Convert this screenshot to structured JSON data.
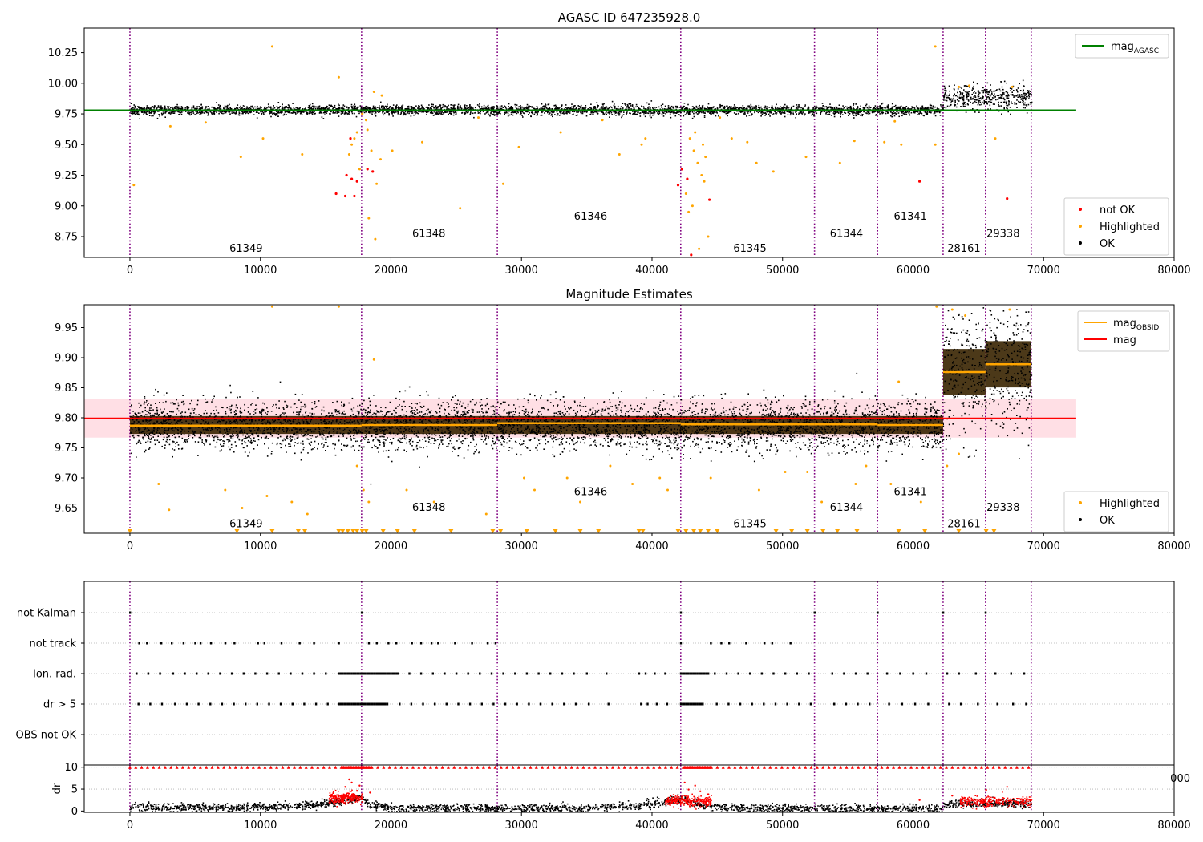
{
  "figure": {
    "title": "AGASC ID 647235928.0"
  },
  "chart_data": [
    {
      "type": "scatter",
      "title": "AGASC ID 647235928.0",
      "xlim": [
        -3500,
        80000
      ],
      "ylim": [
        8.58,
        10.45
      ],
      "xticks": [
        0,
        10000,
        20000,
        30000,
        40000,
        50000,
        60000,
        70000,
        80000
      ],
      "yticks": [
        8.75,
        9.0,
        9.25,
        9.5,
        9.75,
        10.0,
        10.25
      ],
      "ytick_labels": [
        "8.75",
        "9.00",
        "9.25",
        "9.50",
        "9.75",
        "10.00",
        "10.25"
      ],
      "vlines": [
        0,
        17750,
        28150,
        42200,
        52450,
        57280,
        62300,
        65550,
        69050
      ],
      "obsids": [
        {
          "label": "61349",
          "x": 8900,
          "y": 8.66
        },
        {
          "label": "61348",
          "x": 22900,
          "y": 8.78
        },
        {
          "label": "61346",
          "x": 35300,
          "y": 8.92
        },
        {
          "label": "61345",
          "x": 47500,
          "y": 8.66
        },
        {
          "label": "61344",
          "x": 54900,
          "y": 8.78
        },
        {
          "label": "61341",
          "x": 59800,
          "y": 8.92
        },
        {
          "label": "28161",
          "x": 63900,
          "y": 8.66
        },
        {
          "label": "29338",
          "x": 66900,
          "y": 8.78
        }
      ],
      "hline": {
        "name": "mag_AGASC",
        "y": 9.78,
        "x_end": 72500,
        "color": "#008000"
      },
      "ok_segments": [
        {
          "x0": 0,
          "x1": 62300,
          "y": 9.785,
          "spread": 0.02
        },
        {
          "x0": 62300,
          "x1": 65550,
          "y": 9.885,
          "spread": 0.05
        },
        {
          "x0": 65550,
          "x1": 69050,
          "y": 9.89,
          "spread": 0.05
        }
      ],
      "highlighted": [
        [
          16000,
          10.05
        ],
        [
          10900,
          10.3
        ],
        [
          61700,
          10.3
        ],
        [
          18700,
          9.93
        ],
        [
          19300,
          9.9
        ],
        [
          17800,
          9.75
        ],
        [
          17400,
          9.6
        ],
        [
          18200,
          9.62
        ],
        [
          17000,
          9.5
        ],
        [
          18500,
          9.45
        ],
        [
          19200,
          9.38
        ],
        [
          17600,
          9.3
        ],
        [
          16800,
          9.42
        ],
        [
          18900,
          9.18
        ],
        [
          17200,
          9.55
        ],
        [
          18100,
          9.7
        ],
        [
          20100,
          9.45
        ],
        [
          8500,
          9.4
        ],
        [
          13200,
          9.42
        ],
        [
          10200,
          9.55
        ],
        [
          22400,
          9.52
        ],
        [
          3100,
          9.65
        ],
        [
          5800,
          9.68
        ],
        [
          25300,
          8.98
        ],
        [
          29800,
          9.48
        ],
        [
          28600,
          9.18
        ],
        [
          18300,
          8.9
        ],
        [
          18800,
          8.73
        ],
        [
          42900,
          9.55
        ],
        [
          43200,
          9.45
        ],
        [
          43500,
          9.35
        ],
        [
          43800,
          9.25
        ],
        [
          44100,
          9.4
        ],
        [
          43300,
          9.6
        ],
        [
          43900,
          9.5
        ],
        [
          42600,
          9.1
        ],
        [
          42800,
          8.95
        ],
        [
          43100,
          9.0
        ],
        [
          44300,
          8.75
        ],
        [
          44000,
          9.2
        ],
        [
          43600,
          8.65
        ],
        [
          39500,
          9.55
        ],
        [
          39200,
          9.5
        ],
        [
          37500,
          9.42
        ],
        [
          46100,
          9.55
        ],
        [
          47300,
          9.52
        ],
        [
          48000,
          9.35
        ],
        [
          49300,
          9.28
        ],
        [
          51800,
          9.4
        ],
        [
          54400,
          9.35
        ],
        [
          55500,
          9.53
        ],
        [
          57800,
          9.52
        ],
        [
          59100,
          9.5
        ],
        [
          61700,
          9.5
        ],
        [
          66300,
          9.55
        ],
        [
          64300,
          9.98
        ],
        [
          63500,
          9.97
        ],
        [
          67600,
          9.97
        ],
        [
          58600,
          9.69
        ],
        [
          33000,
          9.6
        ],
        [
          36200,
          9.7
        ],
        [
          45200,
          9.72
        ],
        [
          26700,
          9.72
        ],
        [
          300,
          9.17
        ]
      ],
      "not_ok": [
        [
          15800,
          9.1
        ],
        [
          16500,
          9.08
        ],
        [
          17200,
          9.08
        ],
        [
          16600,
          9.25
        ],
        [
          17000,
          9.22
        ],
        [
          17400,
          9.2
        ],
        [
          18200,
          9.3
        ],
        [
          18600,
          9.28
        ],
        [
          16900,
          9.55
        ],
        [
          42000,
          9.17
        ],
        [
          42300,
          9.3
        ],
        [
          43000,
          8.6
        ],
        [
          42700,
          9.22
        ],
        [
          44400,
          9.05
        ],
        [
          60500,
          9.2
        ],
        [
          67200,
          9.06
        ]
      ],
      "legend": [
        "not OK",
        "Highlighted",
        "OK"
      ],
      "legend_title": "mag_AGASC",
      "legend_position": "bottom-right / top-right"
    },
    {
      "type": "scatter",
      "title": "Magnitude Estimates",
      "xlim": [
        -3500,
        80000
      ],
      "ylim": [
        9.608,
        9.988
      ],
      "xticks": [
        0,
        10000,
        20000,
        30000,
        40000,
        50000,
        60000,
        70000,
        80000
      ],
      "yticks": [
        9.65,
        9.7,
        9.75,
        9.8,
        9.85,
        9.9,
        9.95
      ],
      "ytick_labels": [
        "9.65",
        "9.70",
        "9.75",
        "9.80",
        "9.85",
        "9.90",
        "9.95"
      ],
      "vlines": [
        0,
        17750,
        28150,
        42200,
        52450,
        57280,
        62300,
        65550,
        69050
      ],
      "obsids": [
        {
          "label": "61349",
          "x": 8900,
          "y": 9.625
        },
        {
          "label": "61348",
          "x": 22900,
          "y": 9.652
        },
        {
          "label": "61346",
          "x": 35300,
          "y": 9.678
        },
        {
          "label": "61345",
          "x": 47500,
          "y": 9.625
        },
        {
          "label": "61344",
          "x": 54900,
          "y": 9.652
        },
        {
          "label": "61341",
          "x": 59800,
          "y": 9.678
        },
        {
          "label": "28161",
          "x": 63900,
          "y": 9.625
        },
        {
          "label": "29338",
          "x": 66900,
          "y": 9.652
        }
      ],
      "mag": {
        "name": "mag",
        "y": 9.799,
        "band": [
          9.767,
          9.831
        ],
        "x_end": 72500,
        "color": "#ff0000"
      },
      "mag_obsid": [
        {
          "x0": 0,
          "x1": 17750,
          "y": 9.787
        },
        {
          "x0": 17750,
          "x1": 28150,
          "y": 9.788
        },
        {
          "x0": 28150,
          "x1": 42200,
          "y": 9.791
        },
        {
          "x0": 42200,
          "x1": 52450,
          "y": 9.789
        },
        {
          "x0": 52450,
          "x1": 57280,
          "y": 9.789
        },
        {
          "x0": 57280,
          "x1": 62300,
          "y": 9.788
        },
        {
          "x0": 62300,
          "x1": 65550,
          "y": 9.876
        },
        {
          "x0": 65550,
          "x1": 69050,
          "y": 9.889
        }
      ],
      "ok_segments": [
        {
          "x0": 0,
          "x1": 62300,
          "y": 9.788,
          "spread": 0.027
        },
        {
          "x0": 62300,
          "x1": 65550,
          "y": 9.876,
          "spread": 0.07
        },
        {
          "x0": 65550,
          "x1": 69050,
          "y": 9.889,
          "spread": 0.07
        }
      ],
      "highlighted": [
        [
          10900,
          9.985
        ],
        [
          16000,
          9.985
        ],
        [
          61800,
          9.985
        ],
        [
          18700,
          9.897
        ],
        [
          3000,
          9.647
        ],
        [
          2200,
          9.69
        ],
        [
          7300,
          9.68
        ],
        [
          8600,
          9.65
        ],
        [
          10500,
          9.67
        ],
        [
          12400,
          9.66
        ],
        [
          13600,
          9.64
        ],
        [
          17400,
          9.72
        ],
        [
          17900,
          9.68
        ],
        [
          18300,
          9.66
        ],
        [
          21200,
          9.68
        ],
        [
          23300,
          9.66
        ],
        [
          27300,
          9.64
        ],
        [
          30200,
          9.7
        ],
        [
          31000,
          9.68
        ],
        [
          33500,
          9.7
        ],
        [
          34500,
          9.66
        ],
        [
          36800,
          9.72
        ],
        [
          38500,
          9.69
        ],
        [
          40600,
          9.7
        ],
        [
          41200,
          9.68
        ],
        [
          44500,
          9.7
        ],
        [
          48200,
          9.68
        ],
        [
          50200,
          9.71
        ],
        [
          51900,
          9.71
        ],
        [
          53000,
          9.66
        ],
        [
          55600,
          9.69
        ],
        [
          56400,
          9.72
        ],
        [
          58300,
          9.69
        ],
        [
          60600,
          9.66
        ],
        [
          62600,
          9.72
        ],
        [
          63500,
          9.74
        ],
        [
          58900,
          9.86
        ],
        [
          64000,
          9.97
        ],
        [
          67400,
          9.98
        ],
        [
          63000,
          9.98
        ]
      ],
      "lower_markers": [
        0,
        8200,
        10900,
        12900,
        13400,
        16000,
        16300,
        16700,
        17100,
        17400,
        17800,
        18100,
        19400,
        20500,
        21800,
        24600,
        27800,
        28400,
        30400,
        32600,
        34500,
        35900,
        39000,
        39300,
        42000,
        42600,
        43200,
        43700,
        44300,
        45000,
        49500,
        50700,
        51900,
        53100,
        54200,
        55700,
        58900,
        60900,
        63500,
        65600,
        66200
      ],
      "lower_value": 9.612,
      "legend": [
        "Highlighted",
        "OK"
      ],
      "legend_top": [
        "mag_OBSID",
        "mag"
      ],
      "legend_position": "bottom-right / top-right"
    },
    {
      "type": "scatter",
      "xlim": [
        -3500,
        80000
      ],
      "categories": [
        "not Kalman",
        "not track",
        "Ion. rad.",
        "dr > 5",
        "OBS not OK"
      ],
      "vlines": [
        0,
        17750,
        28150,
        42200,
        52450,
        57280,
        62300,
        65550,
        69050
      ],
      "flags": {
        "not Kalman": [
          0,
          17750,
          42200,
          52450,
          57280,
          62300,
          65550
        ],
        "not track": [
          700,
          1300,
          2400,
          3200,
          4100,
          5000,
          5400,
          6200,
          7300,
          8000,
          9800,
          10300,
          11600,
          13000,
          14100,
          16000,
          18300,
          18900,
          19800,
          20400,
          21600,
          22300,
          23100,
          23600,
          24900,
          26200,
          27400,
          28000,
          42200,
          44500,
          45300,
          45900,
          47200,
          48600,
          49200,
          50600
        ],
        "Ion. rad.": [
          {
            "x0": 16000,
            "x1": 17750,
            "dense": true
          },
          {
            "x0": 17750,
            "x1": 20500,
            "dense": true
          },
          {
            "x0": 42200,
            "x1": 44300,
            "dense": true
          }
        ],
        "dr > 5": [
          {
            "x0": 16000,
            "x1": 17750,
            "dense": true
          },
          {
            "x0": 17750,
            "x1": 19800,
            "dense": true
          },
          {
            "x0": 42200,
            "x1": 44000,
            "dense": true
          }
        ],
        "sparse_x": [
          500,
          1400,
          2300,
          3300,
          4200,
          5100,
          6000,
          6900,
          7800,
          8700,
          9600,
          10500,
          11400,
          12300,
          13200,
          14100,
          15000,
          20500,
          21400,
          22300,
          23200,
          24100,
          25000,
          25900,
          26800,
          27700,
          28600,
          29500,
          30400,
          31300,
          32200,
          33100,
          34000,
          35000,
          36500,
          39000,
          39500,
          40200,
          41000,
          44800,
          45700,
          46600,
          47500,
          48400,
          49300,
          50200,
          51100,
          52000,
          53800,
          54700,
          55600,
          56500,
          58000,
          59000,
          60000,
          61000,
          62600,
          63500,
          64800,
          66300,
          67500,
          68500
        ]
      }
    },
    {
      "type": "scatter",
      "xlim": [
        -3500,
        80000
      ],
      "ylim": [
        -0.3,
        10.5
      ],
      "ylabel": "dr",
      "yticks": [
        0,
        5,
        10
      ],
      "xticks": [
        0,
        10000,
        20000,
        30000,
        40000,
        50000,
        60000,
        70000,
        80000
      ],
      "vlines": [
        0,
        17750,
        28150,
        42200,
        52450,
        57280,
        62300,
        65550,
        69050
      ],
      "dr_profile": [
        [
          0,
          1.0
        ],
        [
          10000,
          1.0
        ],
        [
          14000,
          1.5
        ],
        [
          16500,
          2.6
        ],
        [
          17700,
          3.2
        ],
        [
          18200,
          1.6
        ],
        [
          20000,
          0.8
        ],
        [
          28150,
          0.7
        ],
        [
          35000,
          0.8
        ],
        [
          39000,
          1.3
        ],
        [
          41500,
          2.4
        ],
        [
          42200,
          2.7
        ],
        [
          44000,
          1.4
        ],
        [
          46000,
          0.8
        ],
        [
          52450,
          0.7
        ],
        [
          57280,
          0.6
        ],
        [
          62300,
          0.6
        ],
        [
          62300,
          1.8
        ],
        [
          65550,
          1.8
        ],
        [
          69050,
          1.8
        ]
      ],
      "red_dense": [
        {
          "x0": 15200,
          "x1": 17800,
          "y": 3.2
        },
        {
          "x0": 41000,
          "x1": 44500,
          "y": 2.4
        },
        {
          "x0": 63500,
          "x1": 69050,
          "y": 2.3
        }
      ],
      "red_scatter": [
        [
          16500,
          5.5
        ],
        [
          17000,
          6.5
        ],
        [
          17400,
          4.6
        ],
        [
          16800,
          7.2
        ],
        [
          17600,
          5.8
        ],
        [
          18400,
          4.2
        ],
        [
          42800,
          4.9
        ],
        [
          43300,
          5.8
        ],
        [
          43700,
          4.5
        ],
        [
          44300,
          3.8
        ],
        [
          42500,
          6.5
        ],
        [
          60500,
          2.5
        ],
        [
          65600,
          4.8
        ],
        [
          67200,
          5.5
        ],
        [
          63000,
          3.5
        ]
      ],
      "top_row_y": 10,
      "top_row_x": [
        {
          "x0": 0,
          "x1": 62300
        },
        {
          "x0": 62300,
          "x1": 69050
        }
      ],
      "overflow_label": "000"
    }
  ],
  "legends": {
    "panel1_top": [
      "mag_AGASC"
    ],
    "panel1_bottom": [
      "not OK",
      "Highlighted",
      "OK"
    ],
    "panel2_top": [
      "mag_OBSID",
      "mag"
    ],
    "panel2_bottom": [
      "Highlighted",
      "OK"
    ]
  },
  "colors": {
    "ok": "#000000",
    "highlighted": "#ffa500",
    "not_ok": "#ff0000",
    "agasc": "#008000",
    "mag": "#ff0000",
    "mag_obsid": "#ffa500",
    "band": "#ffc0cb",
    "vline": "#800080",
    "grid": "#b0b0b0",
    "segment_box": "#382400"
  }
}
